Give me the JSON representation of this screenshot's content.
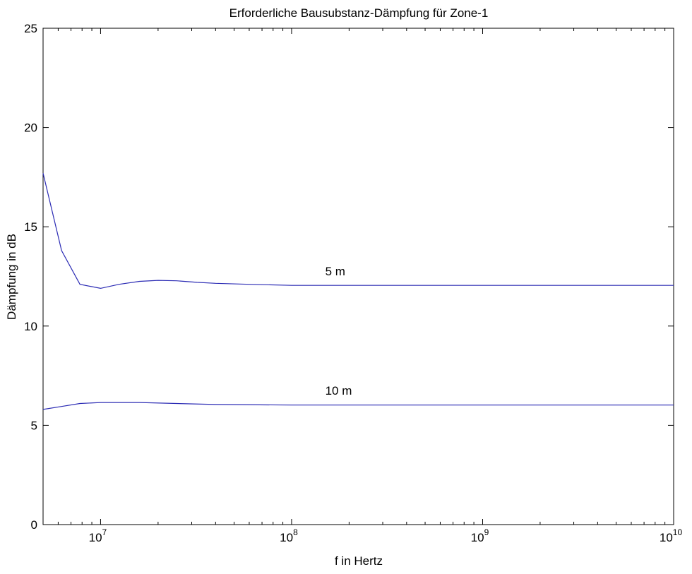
{
  "chart_data": {
    "type": "line",
    "title": "Erforderliche Bausubstanz-Dämpfung für Zone-1",
    "xlabel": "f in Hertz",
    "ylabel": "Dämpfung in dB",
    "xscale": "log",
    "xlim": [
      5000000,
      10000000000
    ],
    "ylim": [
      0,
      25
    ],
    "xticks": [
      {
        "value": 10000000,
        "base": "10",
        "exp": "7"
      },
      {
        "value": 100000000,
        "base": "10",
        "exp": "8"
      },
      {
        "value": 1000000000,
        "base": "10",
        "exp": "9"
      },
      {
        "value": 10000000000,
        "base": "10",
        "exp": "10"
      }
    ],
    "yticks": [
      0,
      5,
      10,
      15,
      20,
      25
    ],
    "grid": false,
    "line_color": "#2b2bb4",
    "series": [
      {
        "name": "5 m",
        "x": [
          5000000,
          6250000,
          7800000,
          10000000,
          12500000,
          16000000,
          20000000,
          25000000,
          32000000,
          40000000,
          60000000,
          100000000,
          1000000000,
          10000000000
        ],
        "y": [
          17.7,
          13.8,
          12.1,
          11.9,
          12.1,
          12.25,
          12.3,
          12.28,
          12.2,
          12.15,
          12.1,
          12.05,
          12.05,
          12.05
        ]
      },
      {
        "name": "10 m",
        "x": [
          5000000,
          6250000,
          7800000,
          10000000,
          16000000,
          25000000,
          40000000,
          100000000,
          1000000000,
          10000000000
        ],
        "y": [
          5.8,
          5.95,
          6.1,
          6.15,
          6.15,
          6.1,
          6.05,
          6.02,
          6.02,
          6.02
        ]
      }
    ],
    "annotations": [
      {
        "text": "5 m",
        "x": 150000000,
        "y": 12.55
      },
      {
        "text": "10 m",
        "x": 150000000,
        "y": 6.55
      }
    ]
  }
}
